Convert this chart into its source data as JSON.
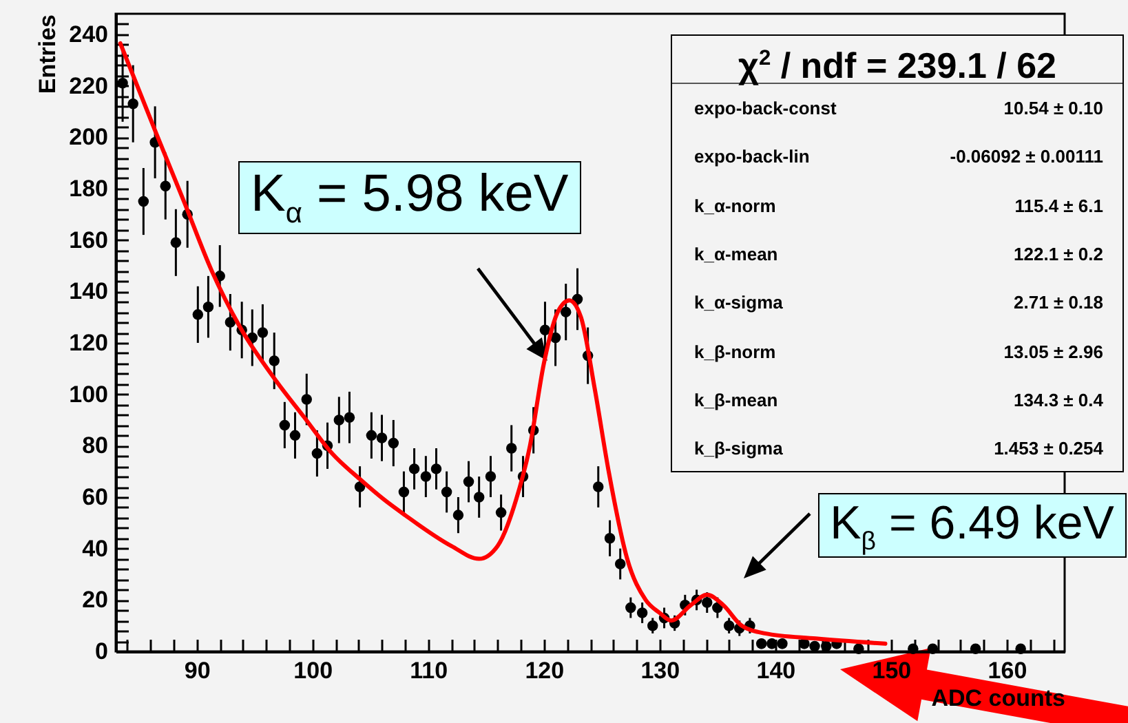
{
  "chart_data": {
    "type": "scatter",
    "xlabel": "ADC counts",
    "ylabel": "Entries",
    "xlim": [
      83,
      165
    ],
    "ylim": [
      0,
      248
    ],
    "xticks": [
      {
        "value": 84,
        "label": null
      },
      {
        "value": 86,
        "label": null
      },
      {
        "value": 88,
        "label": null
      },
      90,
      {
        "value": 92,
        "label": null
      },
      {
        "value": 94,
        "label": null
      },
      {
        "value": 96,
        "label": null
      },
      {
        "value": 98,
        "label": null
      },
      100,
      {
        "value": 102,
        "label": null
      },
      {
        "value": 104,
        "label": null
      },
      {
        "value": 106,
        "label": null
      },
      {
        "value": 108,
        "label": null
      },
      110,
      {
        "value": 112,
        "label": null
      },
      {
        "value": 114,
        "label": null
      },
      {
        "value": 116,
        "label": null
      },
      {
        "value": 118,
        "label": null
      },
      120,
      {
        "value": 122,
        "label": null
      },
      {
        "value": 124,
        "label": null
      },
      {
        "value": 126,
        "label": null
      },
      {
        "value": 128,
        "label": null
      },
      130,
      {
        "value": 132,
        "label": null
      },
      {
        "value": 134,
        "label": null
      },
      {
        "value": 136,
        "label": null
      },
      {
        "value": 138,
        "label": null
      },
      140,
      {
        "value": 142,
        "label": null
      },
      {
        "value": 144,
        "label": null
      },
      {
        "value": 146,
        "label": null
      },
      {
        "value": 148,
        "label": null
      },
      150,
      {
        "value": 152,
        "label": null
      },
      {
        "value": 154,
        "label": null
      },
      {
        "value": 156,
        "label": null
      },
      {
        "value": 158,
        "label": null
      },
      160,
      {
        "value": 162,
        "label": null
      },
      {
        "value": 164,
        "label": null
      }
    ],
    "yticks": [
      0,
      {
        "value": 4,
        "label": null
      },
      {
        "value": 8,
        "label": null
      },
      {
        "value": 12,
        "label": null
      },
      {
        "value": 16,
        "label": null
      },
      20,
      {
        "value": 24,
        "label": null
      },
      {
        "value": 28,
        "label": null
      },
      {
        "value": 32,
        "label": null
      },
      {
        "value": 36,
        "label": null
      },
      40,
      {
        "value": 44,
        "label": null
      },
      {
        "value": 48,
        "label": null
      },
      {
        "value": 52,
        "label": null
      },
      {
        "value": 56,
        "label": null
      },
      60,
      {
        "value": 64,
        "label": null
      },
      {
        "value": 68,
        "label": null
      },
      {
        "value": 72,
        "label": null
      },
      {
        "value": 76,
        "label": null
      },
      80,
      {
        "value": 84,
        "label": null
      },
      {
        "value": 88,
        "label": null
      },
      {
        "value": 92,
        "label": null
      },
      {
        "value": 96,
        "label": null
      },
      100,
      {
        "value": 104,
        "label": null
      },
      {
        "value": 108,
        "label": null
      },
      {
        "value": 112,
        "label": null
      },
      {
        "value": 116,
        "label": null
      },
      120,
      {
        "value": 124,
        "label": null
      },
      {
        "value": 128,
        "label": null
      },
      {
        "value": 132,
        "label": null
      },
      {
        "value": 136,
        "label": null
      },
      140,
      {
        "value": 144,
        "label": null
      },
      {
        "value": 148,
        "label": null
      },
      {
        "value": 152,
        "label": null
      },
      {
        "value": 156,
        "label": null
      },
      160,
      {
        "value": 164,
        "label": null
      },
      {
        "value": 168,
        "label": null
      },
      {
        "value": 172,
        "label": null
      },
      {
        "value": 176,
        "label": null
      },
      180,
      {
        "value": 184,
        "label": null
      },
      {
        "value": 188,
        "label": null
      },
      {
        "value": 192,
        "label": null
      },
      {
        "value": 196,
        "label": null
      },
      200,
      {
        "value": 204,
        "label": null
      },
      {
        "value": 208,
        "label": null
      },
      {
        "value": 212,
        "label": null
      },
      {
        "value": 216,
        "label": null
      },
      220,
      {
        "value": 224,
        "label": null
      },
      {
        "value": 228,
        "label": null
      },
      {
        "value": 232,
        "label": null
      },
      {
        "value": 236,
        "label": null
      },
      240,
      {
        "value": 244,
        "label": null
      }
    ],
    "series": [
      {
        "color": "#000000",
        "marker": "circle",
        "x": [
          83.6,
          84.5,
          85.4,
          86.4,
          87.3,
          88.2,
          89.2,
          90.1,
          91.0,
          92.0,
          92.9,
          93.9,
          94.8,
          95.7,
          96.7,
          97.6,
          98.5,
          99.5,
          100.4,
          101.3,
          102.3,
          103.2,
          104.1,
          105.1,
          106.0,
          107.0,
          107.9,
          108.8,
          109.8,
          110.7,
          111.6,
          112.6,
          113.5,
          114.4,
          115.4,
          116.3,
          117.2,
          118.2,
          119.1,
          120.1,
          121.0,
          121.9,
          122.9,
          123.8,
          124.7,
          125.7,
          126.6,
          127.5,
          128.5,
          129.4,
          130.4,
          131.3,
          132.2,
          133.2,
          134.1,
          135.0,
          136.0,
          136.9,
          137.8,
          138.8,
          139.7,
          140.6,
          142.5,
          143.4,
          144.4,
          145.3,
          147.2,
          151.9,
          153.6,
          157.3,
          161.2
        ],
        "values": [
          221,
          213,
          175,
          198,
          181,
          159,
          170,
          131,
          134,
          146,
          128,
          125,
          122,
          124,
          113,
          88,
          84,
          98,
          77,
          80,
          90,
          91,
          64,
          84,
          83,
          81,
          62,
          71,
          68,
          71,
          62,
          53,
          66,
          60,
          68,
          54,
          79,
          68,
          86,
          125,
          122,
          132,
          137,
          115,
          64,
          44,
          34,
          17,
          15,
          10,
          13,
          11,
          18,
          20,
          19,
          17,
          10,
          9,
          10,
          3,
          3,
          3,
          3,
          2,
          2,
          3,
          1,
          1,
          1,
          1,
          1
        ],
        "errors": [
          15,
          15,
          13,
          14,
          13,
          13,
          13,
          11,
          12,
          12,
          11,
          11,
          11,
          11,
          11,
          9,
          9,
          10,
          9,
          9,
          9,
          10,
          8,
          9,
          9,
          9,
          8,
          8,
          8,
          8,
          8,
          7,
          8,
          8,
          8,
          7,
          9,
          8,
          9,
          11,
          11,
          11,
          12,
          11,
          8,
          7,
          6,
          4,
          4,
          3,
          4,
          3,
          4,
          4,
          4,
          4,
          3,
          3,
          3,
          2,
          2,
          2,
          2,
          1,
          1,
          2,
          1,
          1,
          1,
          1,
          1
        ]
      },
      {
        "type": "line",
        "color": "#ff0000",
        "x": [
          83.4,
          86.5,
          88.9,
          91.3,
          93.7,
          96.9,
          99.3,
          101.7,
          104.1,
          106.2,
          108.0,
          112.0,
          114.4,
          116.0,
          117.6,
          118.8,
          120.0,
          121.2,
          122.2,
          123.2,
          124.4,
          125.6,
          127.2,
          128.8,
          130.0,
          131.0,
          132.7,
          134.1,
          135.5,
          137.1,
          139.1,
          143.5,
          149.5
        ],
        "values": [
          236.5,
          201.5,
          175,
          148,
          126.5,
          105,
          91,
          77,
          67,
          59,
          53,
          41,
          36,
          41,
          59,
          80,
          112,
          132,
          136.5,
          130,
          102,
          70,
          36,
          20,
          15,
          12,
          18,
          22,
          18,
          10,
          7,
          5,
          3
        ]
      }
    ],
    "annotations": [
      {
        "text": "K$_{α}$ = 5.98 keV",
        "x": 120.3,
        "y": 113
      },
      "K$_{β}$ = 6.49 keV",
      "χ$^{2}$ / ndf = 239.1 / 62",
      "expo-back-const",
      "10.54 ± 0.10",
      "expo-back-lin",
      "-0.06092 ± 0.00111",
      "k_α-norm",
      "115.4 ± 6.1",
      "k_α-mean",
      "122.1 ± 0.2",
      "k_α-sigma",
      "2.71 ± 0.18",
      "k_β-norm",
      "13.05 ± 2.96",
      "k_β-mean",
      "134.3 ± 0.4",
      "k_β-sigma",
      "1.453 ± 0.254"
    ]
  }
}
